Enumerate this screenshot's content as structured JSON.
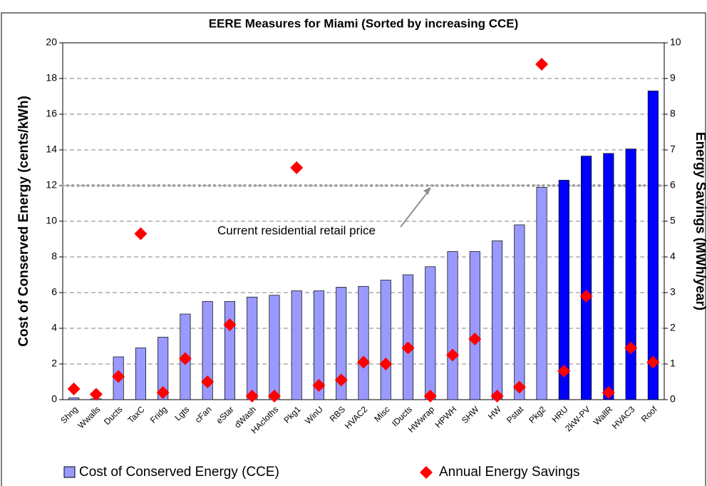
{
  "chart_data": {
    "type": "bar",
    "title": "EERE Measures for Miami (Sorted by increasing CCE)",
    "y_label": "Cost of Conserved Energy (cents/kWh)",
    "y2_label": "Energy Savings (MWh/year)",
    "categories": [
      "Shng",
      "Wwalls",
      "Ducts",
      "TaxC",
      "Fridg",
      "Lgts",
      "cFan",
      "eStar",
      "dWash",
      "HAcloths",
      "Pkg1",
      "WinU",
      "RBS",
      "HVAC2",
      "Misc",
      "IDucts",
      "HWwrap",
      "HPWH",
      "SHW",
      "HW",
      "Pstat",
      "Pkg2",
      "HRU",
      "2kW-PV",
      "WallR",
      "HVAC3",
      "Roof"
    ],
    "series": [
      {
        "name": "Cost of Conserved Energy (CCE)",
        "type": "bar",
        "color": "#9999ff",
        "colors": [
          "#9999ff",
          "#9999ff",
          "#9999ff",
          "#9999ff",
          "#9999ff",
          "#9999ff",
          "#9999ff",
          "#9999ff",
          "#9999ff",
          "#9999ff",
          "#9999ff",
          "#9999ff",
          "#9999ff",
          "#9999ff",
          "#9999ff",
          "#9999ff",
          "#9999ff",
          "#9999ff",
          "#9999ff",
          "#9999ff",
          "#9999ff",
          "#9999ff",
          "#0000ff",
          "#0000ff",
          "#0000ff",
          "#0000ff",
          "#0000ff"
        ],
        "values": [
          0.1,
          0.05,
          2.4,
          2.9,
          3.5,
          4.8,
          5.5,
          5.5,
          5.75,
          5.85,
          6.1,
          6.1,
          6.3,
          6.35,
          6.7,
          7.0,
          7.45,
          8.3,
          8.3,
          8.9,
          9.8,
          11.9,
          12.3,
          13.65,
          13.8,
          14.05,
          17.3
        ]
      },
      {
        "name": "Annual Energy Savings",
        "type": "scatter",
        "axis": "y2",
        "color": "#ff0000",
        "values": [
          0.3,
          0.15,
          0.65,
          4.65,
          0.2,
          1.15,
          0.5,
          2.1,
          0.1,
          0.1,
          6.5,
          0.4,
          0.55,
          1.05,
          1.0,
          1.45,
          0.1,
          1.25,
          1.7,
          0.1,
          0.35,
          9.4,
          0.8,
          2.9,
          0.2,
          1.45,
          1.05
        ]
      }
    ],
    "ref_line": {
      "value": 12,
      "label": "Current residential retail price",
      "color": "#a0a0a0"
    },
    "ylim": [
      0,
      20
    ],
    "yticks": [
      0,
      2,
      4,
      6,
      8,
      10,
      12,
      14,
      16,
      18,
      20
    ],
    "y2lim": [
      0,
      10
    ],
    "y2ticks": [
      0,
      1,
      2,
      3,
      4,
      5,
      6,
      7,
      8,
      9,
      10
    ],
    "grid": true,
    "legend": "bottom"
  }
}
